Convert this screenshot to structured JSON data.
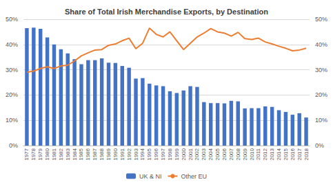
{
  "chart_data": {
    "type": "bar",
    "title": "Share of Total Irish Merchandise Exports, by Destination",
    "categories": [
      "1977",
      "1978",
      "1979",
      "1980",
      "1981",
      "1982",
      "1983",
      "1984",
      "1985",
      "1986",
      "1987",
      "1988",
      "1989",
      "1990",
      "1991",
      "1992",
      "1993",
      "1994",
      "1995",
      "1996",
      "1997",
      "1998",
      "1999",
      "2000",
      "2001",
      "2002",
      "2003",
      "2004",
      "2005",
      "2006",
      "2007",
      "2008",
      "2009",
      "2010",
      "2011",
      "2012",
      "2013",
      "2014",
      "2015",
      "2016",
      "2017",
      "2018"
    ],
    "series": [
      {
        "name": "UK & NI",
        "type": "bar",
        "color": "#4472c4",
        "values": [
          46.5,
          46.7,
          46.2,
          42.8,
          40.0,
          38.1,
          36.5,
          34.2,
          32.2,
          33.8,
          33.8,
          34.5,
          32.8,
          32.7,
          31.5,
          30.8,
          26.5,
          26.7,
          24.5,
          23.8,
          23.5,
          21.5,
          20.8,
          21.8,
          23.5,
          23.2,
          17.2,
          16.8,
          16.8,
          16.7,
          17.7,
          17.5,
          14.7,
          14.8,
          14.8,
          15.5,
          15.3,
          14.0,
          13.3,
          12.2,
          12.8,
          11.1
        ]
      },
      {
        "name": "Other EU",
        "type": "line",
        "color": "#ed7d31",
        "axis": "y2",
        "values": [
          29.0,
          29.5,
          30.5,
          31.2,
          30.5,
          31.5,
          31.8,
          33.5,
          35.5,
          36.7,
          37.8,
          38.0,
          39.7,
          40.2,
          41.5,
          42.5,
          38.3,
          40.5,
          46.5,
          44.0,
          43.0,
          45.0,
          41.5,
          38.0,
          40.5,
          43.0,
          44.5,
          46.3,
          45.0,
          44.5,
          43.3,
          44.8,
          42.3,
          42.0,
          42.5,
          41.0,
          40.2,
          39.3,
          38.5,
          37.5,
          37.8,
          38.5
        ]
      }
    ],
    "ylim": [
      0,
      50
    ],
    "yticks": [
      {
        "value": 0,
        "label": "0%"
      },
      {
        "value": 10,
        "label": "10%"
      },
      {
        "value": 20,
        "label": "20%"
      },
      {
        "value": 30,
        "label": "30%"
      },
      {
        "value": 40,
        "label": "40%"
      },
      {
        "value": 50,
        "label": "50%"
      }
    ],
    "y2lim": [
      0,
      50
    ],
    "y2ticks": [
      {
        "value": 0,
        "label": "0%"
      },
      {
        "value": 10,
        "label": "10%"
      },
      {
        "value": 20,
        "label": "20%"
      },
      {
        "value": 30,
        "label": "30%"
      },
      {
        "value": 40,
        "label": "40%"
      },
      {
        "value": 50,
        "label": "50%"
      }
    ],
    "grid": true,
    "legend": "bottom"
  }
}
